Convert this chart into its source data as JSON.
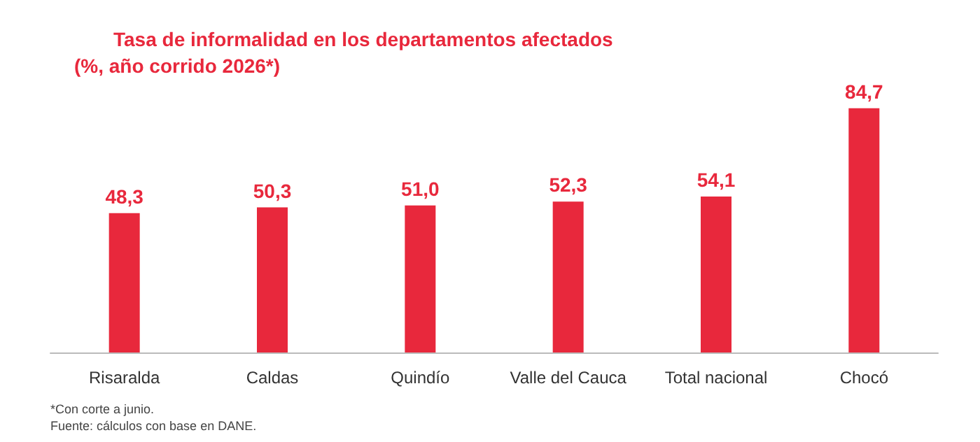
{
  "chart_data": {
    "type": "bar",
    "title": "Tasa de informalidad en los departamentos afectados",
    "subtitle": "(%, año corrido 2026*)",
    "categories": [
      "Risaralda",
      "Caldas",
      "Quindío",
      "Valle del Cauca",
      "Total nacional",
      "Chocó"
    ],
    "values": [
      48.3,
      50.3,
      51.0,
      52.3,
      54.1,
      84.7
    ],
    "value_labels": [
      "48,3",
      "50,3",
      "51,0",
      "52,3",
      "54,1",
      "84,7"
    ],
    "color": "#e8283c",
    "annotations": [
      "*Con corte a junio.",
      "Fuente: cálculos con base en DANE."
    ]
  }
}
